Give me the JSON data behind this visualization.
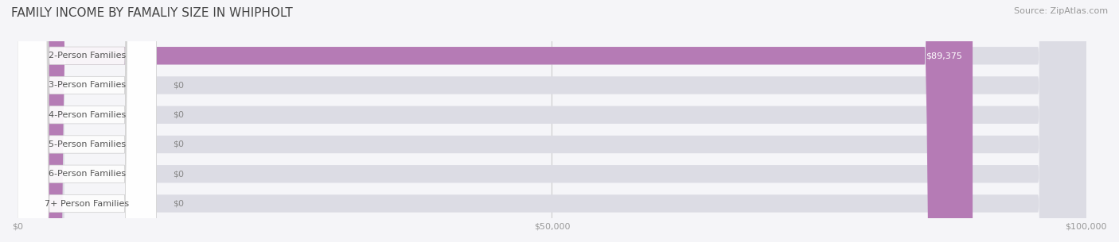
{
  "title": "FAMILY INCOME BY FAMALIY SIZE IN WHIPHOLT",
  "source": "Source: ZipAtlas.com",
  "categories": [
    "2-Person Families",
    "3-Person Families",
    "4-Person Families",
    "5-Person Families",
    "6-Person Families",
    "7+ Person Families"
  ],
  "values": [
    89375,
    0,
    0,
    0,
    0,
    0
  ],
  "bar_colors": [
    "#b57bb5",
    "#7ecece",
    "#a0a8d8",
    "#f4a0b8",
    "#f5c98a",
    "#f5b0a0"
  ],
  "label_colors": [
    "#b57bb5",
    "#7ecece",
    "#a0a8d8",
    "#f4a0b8",
    "#f5c98a",
    "#f5b0a0"
  ],
  "bar_bg_color": "#e8e8ee",
  "xlim": [
    0,
    100000
  ],
  "xticks": [
    0,
    50000,
    100000
  ],
  "xtick_labels": [
    "$0",
    "$50,000",
    "$100,000"
  ],
  "value_labels": [
    "$89,375",
    "$0",
    "$0",
    "$0",
    "$0",
    "$0"
  ],
  "background_color": "#f5f5f8",
  "title_fontsize": 11,
  "source_fontsize": 8,
  "label_fontsize": 8,
  "value_fontsize": 8,
  "bar_height": 0.6,
  "figsize": [
    14.06,
    3.05
  ],
  "dpi": 100
}
